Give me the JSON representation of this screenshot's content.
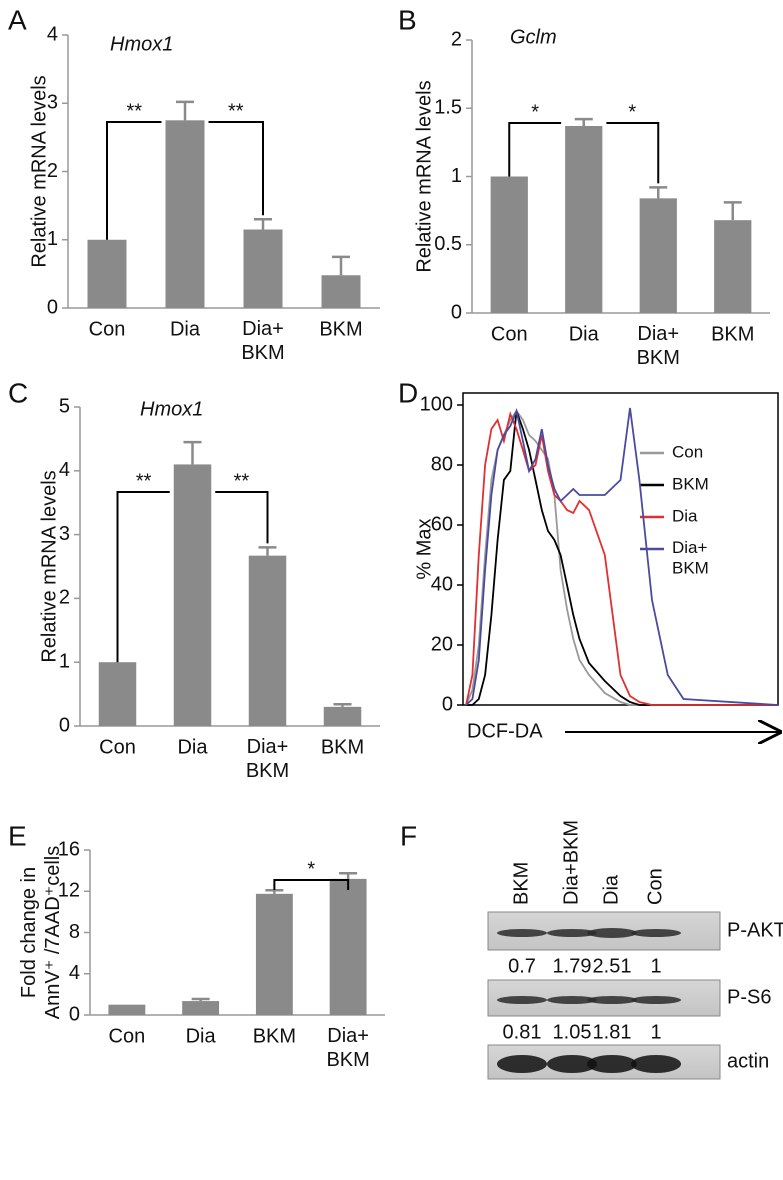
{
  "chart_data": [
    {
      "type": "bar",
      "panel": "A",
      "title": "Hmox1",
      "y_label": "Relative mRNA levels",
      "categories": [
        "Con",
        "Dia",
        "Dia+\nBKM",
        "BKM"
      ],
      "values": [
        1,
        2.75,
        1.15,
        0.48
      ],
      "errors": [
        0,
        0.27,
        0.15,
        0.27
      ],
      "color": "#8a8a8a",
      "ylim": [
        0,
        4
      ],
      "yticks": [
        0,
        1,
        2,
        3,
        4
      ],
      "annotations": [
        "**",
        "**"
      ]
    },
    {
      "type": "bar",
      "panel": "B",
      "title": "Gclm",
      "y_label": "Relative mRNA levels",
      "categories": [
        "Con",
        "Dia",
        "Dia+\nBKM",
        "BKM"
      ],
      "values": [
        1,
        1.37,
        0.84,
        0.68
      ],
      "errors": [
        0,
        0.05,
        0.08,
        0.13
      ],
      "color": "#8a8a8a",
      "ylim": [
        0,
        2
      ],
      "yticks": [
        0,
        0.5,
        1,
        1.5,
        2
      ],
      "annotations": [
        "*",
        "*"
      ]
    },
    {
      "type": "bar",
      "panel": "C",
      "title": "Hmox1",
      "y_label": "Relative mRNA levels",
      "categories": [
        "Con",
        "Dia",
        "Dia+\nBKM",
        "BKM"
      ],
      "values": [
        1,
        4.1,
        2.67,
        0.3
      ],
      "errors": [
        0,
        0.35,
        0.13,
        0.04
      ],
      "color": "#8a8a8a",
      "ylim": [
        0,
        5
      ],
      "yticks": [
        0,
        1,
        2,
        3,
        4,
        5
      ],
      "annotations": [
        "**",
        "**"
      ]
    },
    {
      "type": "line",
      "panel": "D",
      "y_label": "% Max",
      "x_label": "DCF-DA",
      "x": [
        1,
        3,
        5,
        7,
        9,
        11,
        13,
        15,
        17,
        19,
        21,
        23,
        25,
        27,
        29,
        31,
        33,
        35,
        37,
        40,
        45,
        50,
        53,
        56,
        60,
        65,
        70,
        100
      ],
      "xlim": [
        0,
        100
      ],
      "ylim": [
        0,
        104
      ],
      "yticks": [
        0,
        20,
        40,
        60,
        80,
        100
      ],
      "series": [
        {
          "name": "Con",
          "color": "#999999",
          "values": [
            0,
            5,
            20,
            50,
            75,
            85,
            90,
            95,
            98,
            95,
            90,
            88,
            85,
            82,
            70,
            45,
            32,
            22,
            15,
            10,
            4,
            1,
            0,
            0,
            0,
            0,
            0,
            0
          ]
        },
        {
          "name": "BKM",
          "color": "#000000",
          "values": [
            0,
            0,
            2,
            10,
            30,
            55,
            75,
            78,
            98,
            92,
            85,
            75,
            65,
            58,
            55,
            50,
            40,
            30,
            22,
            14,
            8,
            3,
            1,
            0,
            0,
            0,
            0,
            0
          ]
        },
        {
          "name": "Dia",
          "color": "#e03030",
          "values": [
            0,
            10,
            50,
            80,
            92,
            95,
            88,
            97,
            92,
            85,
            78,
            80,
            90,
            78,
            70,
            68,
            65,
            64,
            68,
            65,
            50,
            10,
            3,
            1,
            0,
            0,
            0,
            0
          ]
        },
        {
          "name": "Dia+\nBKM",
          "color": "#4a4aa0",
          "values": [
            0,
            2,
            15,
            45,
            70,
            85,
            90,
            93,
            98,
            88,
            78,
            82,
            92,
            80,
            72,
            68,
            70,
            72,
            70,
            70,
            70,
            75,
            99,
            75,
            35,
            10,
            2,
            0
          ]
        }
      ]
    },
    {
      "type": "bar",
      "panel": "E",
      "y_label": "Fold change in\nAnnV⁺ /7AAD⁺cells",
      "categories": [
        "Con",
        "Dia",
        "BKM",
        "Dia+\nBKM"
      ],
      "values": [
        1,
        1.35,
        11.75,
        13.2
      ],
      "errors": [
        0,
        0.2,
        0.35,
        0.55
      ],
      "color": "#8a8a8a",
      "ylim": [
        0,
        16
      ],
      "yticks": [
        0,
        4,
        8,
        12,
        16
      ],
      "annotations": [
        "*"
      ]
    }
  ],
  "blot": {
    "panel": "F",
    "lanes": [
      "BKM",
      "Dia+BKM",
      "Dia",
      "Con"
    ],
    "rows": [
      {
        "label": "P-AKT",
        "quant": [
          0.7,
          1.79,
          2.51,
          1
        ]
      },
      {
        "label": "P-S6",
        "quant": [
          0.81,
          1.05,
          1.81,
          1
        ]
      },
      {
        "label": "actin"
      }
    ]
  }
}
